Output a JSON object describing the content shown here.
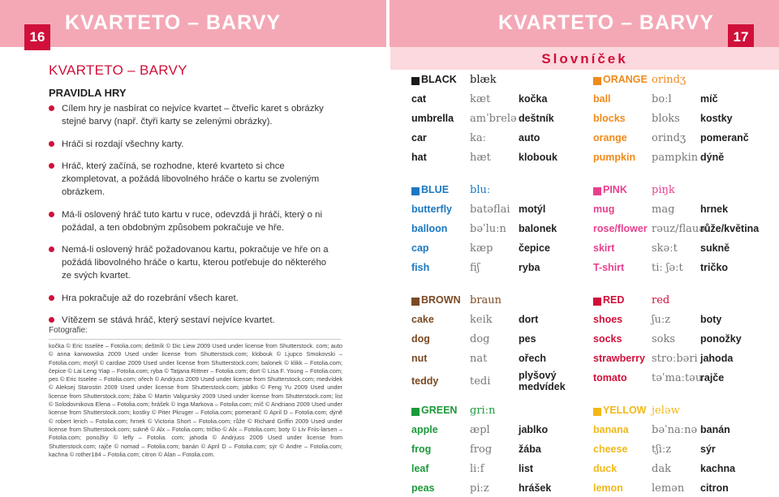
{
  "header": {
    "left_page_num": "16",
    "right_page_num": "17",
    "left_title": "KVARTETO – BARVY",
    "right_title": "KVARTETO – BARVY"
  },
  "left": {
    "title": "KVARTETO – BARVY",
    "subtitle": "PRAVIDLA HRY",
    "rules": [
      "Cílem hry je nasbírat co nejvíce kvartet – čtveřic karet s obrázky stejné barvy (např. čtyři karty se zelenými obrázky).",
      "Hráči si rozdají všechny karty.",
      "Hráč, který začíná, se rozhodne, které kvarteto si chce zkompletovat, a požádá libovolného hráče o kartu se zvoleným obrázkem.",
      "Má-li oslovený hráč tuto kartu v ruce, odevzdá ji hráči, který o ni požádal, a ten obdobným způsobem pokračuje ve hře.",
      "Nemá-li oslovený hráč požadovanou kartu, pokračuje ve hře on a požádá libovolného hráče o kartu, kterou potřebuje do některého ze svých kvartet.",
      "Hra pokračuje až do rozebrání všech karet.",
      "Vítězem se stává hráč, který sestaví nejvíce kvartet."
    ],
    "photo_label": "Fotografie:",
    "credits": "kočka © Eric Isselée – Fotolia.com; deštník © Dic Liew 2009 Used under license from Shutterstock. com; auto © anna karwowska 2009 Used under license from Shutterstock.com; klobouk © Ljupco Smokovski – Fotolia.com; motýl © cardiae 2009 Used under license from Shutterstock.com; balonek © klikk – Fotolia.com; čepice © Lai Leng Yiap – Fotolia.com; ryba © Tatjana Rittner – Fotolia.com; dort © Lisa F. Young – Fotolia.com; pes © Eric Isselée – Fotolia.com; ořech © Andrjuss 2009 Used under license from Shutterstock.com; medvídek © Aleksej Starostin 2009 Used under license from Shutterstock.com; jablko © Feng Yu 2009 Used under license from Shutterstock.com; žába © Martin Valigursky 2009 Used under license from Shutterstock.com; list © Solodovnikova Elena – Fotolia.com; hrášek © Inga Markova – Fotolia.com; míč © Andriano 2009 Used under license from Shutterstock.com; kostky © Piter Pkruger – Fotolia.com; pomeranč © April D – Fotolia.com; dýně © robert lerich – Fotolia.com; hrnek © Victoria Short – Fotolia.com; růže © Richard Griffin 2009 Used under license from Shutterstock.com; sukně © Alx – Fotolia.com; tričko © Alx – Fotolia.com; boty © Liv Friis-larsen – Fotolia.com; ponožky © Iefly – Fotolia. com; jahoda © Andrjuss 2009 Used under license from Shutterstock.com; rajče © nomad – Fotolia.com; banán © April D – Fotolia.com; sýr © Andre – Fotolia.com; kachna © rother184 – Fotolia.com; citron © Alan – Fotolia.com."
  },
  "right": {
    "section_title": "Slovníček",
    "groups": [
      {
        "color": "#1a1a1a",
        "name": "BLACK",
        "ph": "blæk",
        "name_color": "#1a1a1a",
        "rows": [
          [
            "cat",
            "kæt",
            "kočka"
          ],
          [
            "umbrella",
            "amˈbrelə",
            "deštník"
          ],
          [
            "car",
            "kaː",
            "auto"
          ],
          [
            "hat",
            "hæt",
            "klobouk"
          ]
        ]
      },
      {
        "color": "#f08a1c",
        "name": "ORANGE",
        "ph": "orindʒ",
        "name_color": "#f08a1c",
        "rows": [
          [
            "ball",
            "boːl",
            "míč"
          ],
          [
            "blocks",
            "bloks",
            "kostky"
          ],
          [
            "orange",
            "orindʒ",
            "pomeranč"
          ],
          [
            "pumpkin",
            "pampkin",
            "dýně"
          ]
        ]
      },
      {
        "color": "#1a78c2",
        "name": "BLUE",
        "ph": "bluː",
        "name_color": "#1a78c2",
        "rows": [
          [
            "butterfly",
            "batəflai",
            "motýl"
          ],
          [
            "balloon",
            "bəˈluːn",
            "balonek"
          ],
          [
            "cap",
            "kæp",
            "čepice"
          ],
          [
            "fish",
            "fiʃ",
            "ryba"
          ]
        ]
      },
      {
        "color": "#e8408e",
        "name": "PINK",
        "ph": "piŋk",
        "name_color": "#e8408e",
        "rows": [
          [
            "mug",
            "mag",
            "hrnek"
          ],
          [
            "rose/flower",
            "rəuz/flauə",
            "růže/květina"
          ],
          [
            "skirt",
            "skəːt",
            "sukně"
          ],
          [
            "T-shirt",
            "tiː ʃəːt",
            "tričko"
          ]
        ]
      },
      {
        "color": "#7a4a24",
        "name": "BROWN",
        "ph": "braun",
        "name_color": "#7a4a24",
        "rows": [
          [
            "cake",
            "keik",
            "dort"
          ],
          [
            "dog",
            "dog",
            "pes"
          ],
          [
            "nut",
            "nat",
            "ořech"
          ],
          [
            "teddy",
            "tedi",
            "plyšový medvídek"
          ]
        ]
      },
      {
        "color": "#d0103a",
        "name": "RED",
        "ph": "red",
        "name_color": "#d0103a",
        "rows": [
          [
            "shoes",
            "ʃuːz",
            "boty"
          ],
          [
            "socks",
            "soks",
            "ponožky"
          ],
          [
            "strawberry",
            "stroːbəri",
            "jahoda"
          ],
          [
            "tomato",
            "təˈmaːtəu",
            "rajče"
          ]
        ]
      },
      {
        "color": "#1c9a3a",
        "name": "GREEN",
        "ph": "griːn",
        "name_color": "#1c9a3a",
        "rows": [
          [
            "apple",
            "æpl",
            "jablko"
          ],
          [
            "frog",
            "frog",
            "žába"
          ],
          [
            "leaf",
            "liːf",
            "list"
          ],
          [
            "peas",
            "piːz",
            "hrášek"
          ]
        ]
      },
      {
        "color": "#f2b818",
        "name": "YELLOW",
        "ph": "jeləw",
        "name_color": "#f2b818",
        "rows": [
          [
            "banana",
            "bəˈnaːnə",
            "banán"
          ],
          [
            "cheese",
            "tʃiːz",
            "sýr"
          ],
          [
            "duck",
            "dak",
            "kachna"
          ],
          [
            "lemon",
            "lemən",
            "citron"
          ]
        ]
      }
    ]
  }
}
